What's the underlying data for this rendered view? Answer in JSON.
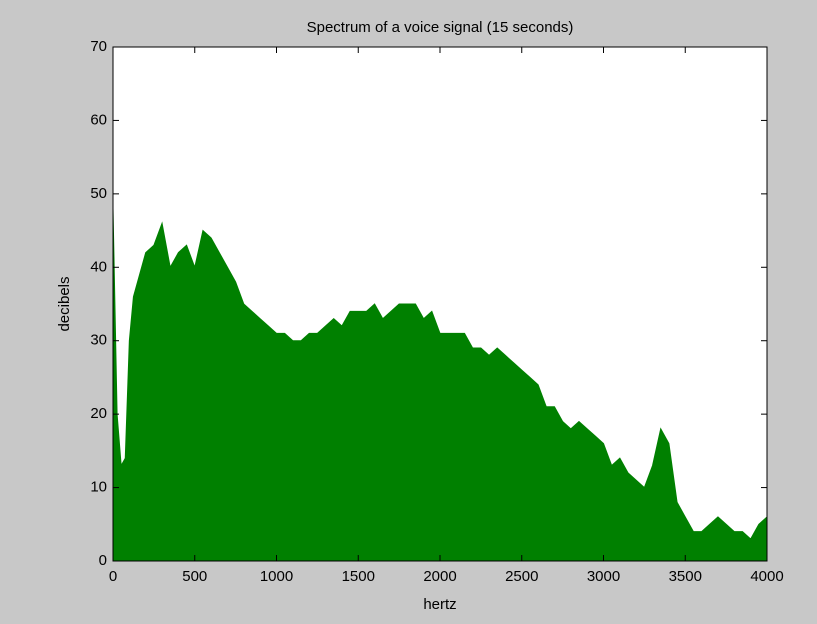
{
  "chart_data": {
    "type": "area",
    "title": "Spectrum of a voice signal (15 seconds)",
    "xlabel": "hertz",
    "ylabel": "decibels",
    "x": [
      0,
      25,
      50,
      75,
      100,
      125,
      150,
      200,
      250,
      300,
      350,
      400,
      450,
      500,
      550,
      600,
      650,
      700,
      750,
      800,
      850,
      900,
      950,
      1000,
      1050,
      1100,
      1150,
      1200,
      1250,
      1300,
      1350,
      1400,
      1450,
      1500,
      1550,
      1600,
      1650,
      1700,
      1750,
      1800,
      1850,
      1900,
      1950,
      2000,
      2050,
      2100,
      2150,
      2200,
      2250,
      2300,
      2350,
      2400,
      2450,
      2500,
      2550,
      2600,
      2650,
      2700,
      2750,
      2800,
      2850,
      2900,
      2950,
      3000,
      3050,
      3100,
      3150,
      3200,
      3250,
      3300,
      3350,
      3400,
      3450,
      3500,
      3550,
      3600,
      3650,
      3700,
      3750,
      3800,
      3850,
      3900,
      3950,
      4000
    ],
    "values": [
      48,
      20,
      13,
      14,
      30,
      36,
      38,
      42,
      43,
      46,
      40,
      42,
      43,
      40,
      45,
      44,
      42,
      40,
      38,
      35,
      34,
      33,
      32,
      31,
      31,
      30,
      30,
      31,
      31,
      32,
      33,
      32,
      34,
      34,
      34,
      35,
      33,
      34,
      35,
      35,
      35,
      33,
      34,
      31,
      31,
      31,
      31,
      29,
      29,
      28,
      29,
      28,
      27,
      26,
      25,
      24,
      21,
      21,
      19,
      18,
      19,
      18,
      17,
      16,
      13,
      14,
      12,
      11,
      10,
      13,
      18,
      16,
      8,
      6,
      4,
      4,
      5,
      6,
      5,
      4,
      4,
      3,
      5,
      6
    ],
    "color": "#008000",
    "xlim": [
      0,
      4000
    ],
    "ylim": [
      0,
      70
    ],
    "xticks": [
      0,
      500,
      1000,
      1500,
      2000,
      2500,
      3000,
      3500,
      4000
    ],
    "yticks": [
      0,
      10,
      20,
      30,
      40,
      50,
      60,
      70
    ]
  }
}
